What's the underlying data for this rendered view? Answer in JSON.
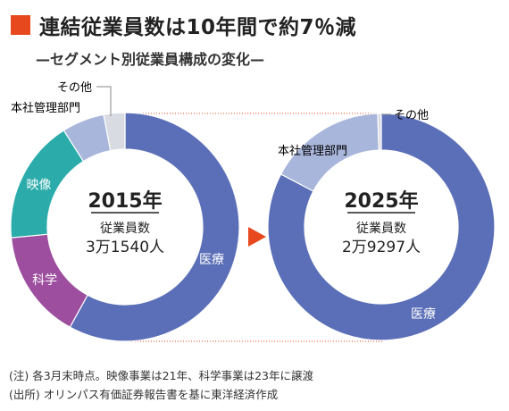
{
  "header": {
    "title": "連結従業員数は10年間で約7％減",
    "subtitle": "—セグメント別従業員構成の変化—"
  },
  "colors": {
    "accent": "#e8481e",
    "medical": "#5b6fb8",
    "medical_light": "#a9b6dc",
    "imaging": "#2bacab",
    "science": "#9d4e9f",
    "other": "#d8dbe2"
  },
  "chart_data": [
    {
      "type": "pie",
      "variant": "donut",
      "center": {
        "year": "2015年",
        "label": "従業員数",
        "value": "3万1540人"
      },
      "slices": [
        {
          "label": "医療",
          "value": 58.0,
          "color": "#5b6fb8"
        },
        {
          "label": "科学",
          "value": 15.5,
          "color": "#9d4e9f"
        },
        {
          "label": "映像",
          "value": 17.5,
          "color": "#2bacab"
        },
        {
          "label": "本社管理部門",
          "value": 6.0,
          "color": "#a9b6dc"
        },
        {
          "label": "その他",
          "value": 3.0,
          "color": "#d8dbe2"
        }
      ]
    },
    {
      "type": "pie",
      "variant": "donut",
      "center": {
        "year": "2025年",
        "label": "従業員数",
        "value": "2万9297人"
      },
      "slices": [
        {
          "label": "医療",
          "value": 82.7,
          "color": "#5b6fb8"
        },
        {
          "label": "本社管理部門",
          "value": 16.8,
          "color": "#a9b6dc"
        },
        {
          "label": "その他",
          "value": 0.5,
          "color": "#d8dbe2"
        }
      ]
    }
  ],
  "footer": {
    "note": "(注) 各3月末時点。映像事業は21年、科学事業は23年に譲渡",
    "source": "(出所) オリンパス有価証券報告書を基に東洋経済作成"
  }
}
